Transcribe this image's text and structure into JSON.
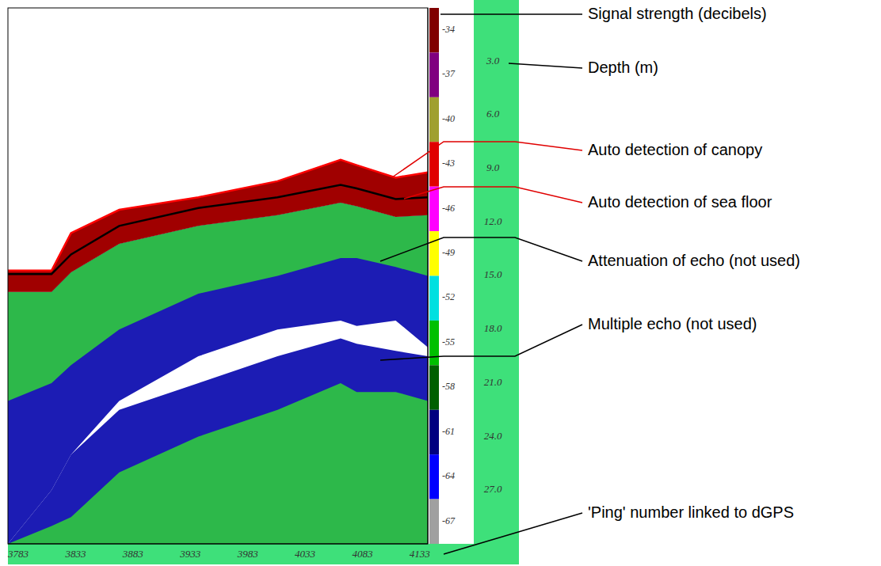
{
  "chart_data": {
    "type": "echogram",
    "x": [
      3774,
      3812,
      3829,
      3871,
      3940,
      4009,
      4064,
      4078,
      4112,
      4140
    ],
    "xlim": [
      3774,
      4140
    ],
    "xticks": [
      3783,
      3833,
      3883,
      3933,
      3983,
      4033,
      4083,
      4133
    ],
    "ylim": [
      0,
      30
    ],
    "yticks": [
      {
        "value": 3,
        "label": "3.0"
      },
      {
        "value": 6,
        "label": "6.0"
      },
      {
        "value": 9,
        "label": "9.0"
      },
      {
        "value": 12,
        "label": "12.0"
      },
      {
        "value": 15,
        "label": "15.0"
      },
      {
        "value": 18,
        "label": "18.0"
      },
      {
        "value": 21,
        "label": "21.0"
      },
      {
        "value": 24,
        "label": "24.0"
      },
      {
        "value": 27,
        "label": "27.0"
      }
    ],
    "layers": [
      {
        "color": "#1c1cb4",
        "top": [
          15.9,
          15.9,
          14.8,
          13.2,
          12.2,
          11.6,
          10.9,
          11.1,
          11.7,
          11.6
        ],
        "bottom": [
          30,
          27,
          25,
          22,
          19.5,
          18,
          17.5,
          17.8,
          17.5,
          19
        ]
      },
      {
        "color": "#1c1cb4",
        "top": [
          30,
          27,
          25,
          22.5,
          21,
          19.5,
          18.5,
          18.8,
          19.2,
          19.5
        ],
        "bottom": [
          30,
          30,
          30,
          30,
          30,
          30,
          30,
          30,
          30,
          30
        ]
      },
      {
        "color": "#2db84a",
        "top": [
          15.9,
          15.9,
          14.8,
          13.2,
          12.2,
          11.6,
          10.9,
          11.1,
          11.7,
          11.6
        ],
        "bottom": [
          22,
          21,
          20,
          18,
          16,
          15,
          14,
          14,
          14.5,
          15
        ]
      },
      {
        "color": "#2db84a",
        "top": [
          30,
          29,
          28.5,
          26,
          24,
          22.5,
          21,
          21.5,
          21.5,
          22
        ],
        "bottom": [
          30,
          30,
          30,
          30,
          30,
          30,
          30,
          30,
          30,
          30
        ]
      },
      {
        "color": "#a00000",
        "top": [
          14.7,
          14.7,
          12.6,
          11.3,
          10.6,
          9.7,
          8.5,
          8.8,
          9.5,
          9.2
        ],
        "bottom": [
          15.9,
          15.9,
          14.8,
          13.2,
          12.2,
          11.6,
          10.9,
          11.1,
          11.7,
          11.6
        ]
      }
    ],
    "series": [
      {
        "color": "#ff0000",
        "values": [
          14.7,
          14.7,
          12.6,
          11.3,
          10.6,
          9.7,
          8.5,
          8.8,
          9.5,
          9.2
        ]
      },
      {
        "color": "#000000",
        "values": [
          14.9,
          14.9,
          13.8,
          12.2,
          11.2,
          10.6,
          9.9,
          10.1,
          10.7,
          10.6
        ]
      }
    ],
    "color_bar": {
      "range": [
        -68.5,
        -32.5
      ],
      "ticks": [
        -34,
        -37,
        -40,
        -43,
        -46,
        -49,
        -52,
        -55,
        -58,
        -61,
        -64,
        -67
      ],
      "colors": [
        "#800000",
        "#800080",
        "#a0a030",
        "#e00000",
        "#ff00ff",
        "#ffff00",
        "#00e0e0",
        "#00c000",
        "#006000",
        "#000080",
        "#0000ff",
        "#a0a0a0"
      ]
    },
    "annotations": [
      {
        "text": "Signal strength (decibels)",
        "color": "#000000"
      },
      {
        "text": "Depth (m)",
        "color": "#000000"
      },
      {
        "text": "Auto detection of canopy",
        "color": "#e00000"
      },
      {
        "text": "Auto detection of sea floor",
        "color": "#e00000"
      },
      {
        "text": "Attenuation of echo (not used)",
        "color": "#000000"
      },
      {
        "text": "Multiple echo (not used)",
        "color": "#000000"
      },
      {
        "text": "'Ping' number linked to dGPS",
        "color": "#000000"
      }
    ]
  }
}
